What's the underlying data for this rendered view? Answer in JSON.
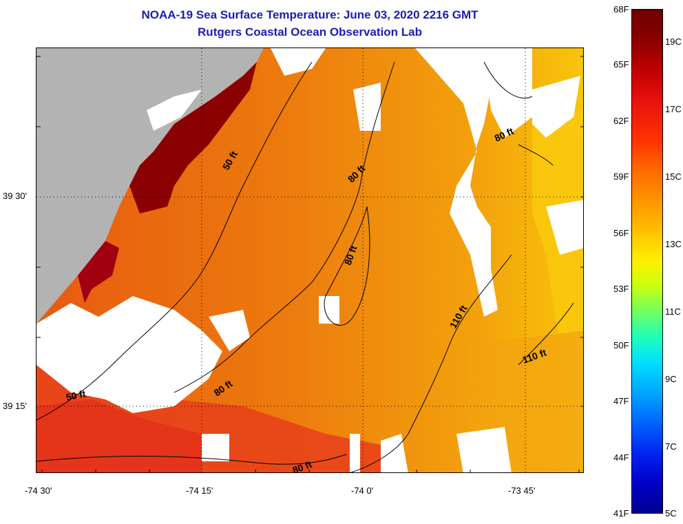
{
  "title": "NOAA-19 Sea Surface Temperature:  June 03, 2020 2216 GMT",
  "subtitle": "Rutgers Coastal Ocean Observation Lab",
  "lat_labels": [
    "39 30'",
    "39 15'"
  ],
  "lon_labels": [
    "-74 30'",
    "-74 15'",
    "-74 0'",
    "-73 45'"
  ],
  "contour_labels": [
    "50 ft",
    "80 ft",
    "80 ft",
    "80 ft",
    "110 ft",
    "110 ft",
    "50 ft",
    "80 ft",
    "80 ft"
  ],
  "colorbar": {
    "fahrenheit": [
      "68F",
      "65F",
      "62F",
      "59F",
      "56F",
      "53F",
      "50F",
      "47F",
      "44F",
      "41F"
    ],
    "celsius": [
      "19C",
      "17C",
      "15C",
      "13C",
      "11C",
      "9C",
      "7C",
      "5C"
    ]
  },
  "colors": {
    "title": "#1c1cb4",
    "land": "#b3b3b3",
    "cloud": "#ffffff",
    "warm": "#e9790f",
    "hot": "#8b0000"
  }
}
